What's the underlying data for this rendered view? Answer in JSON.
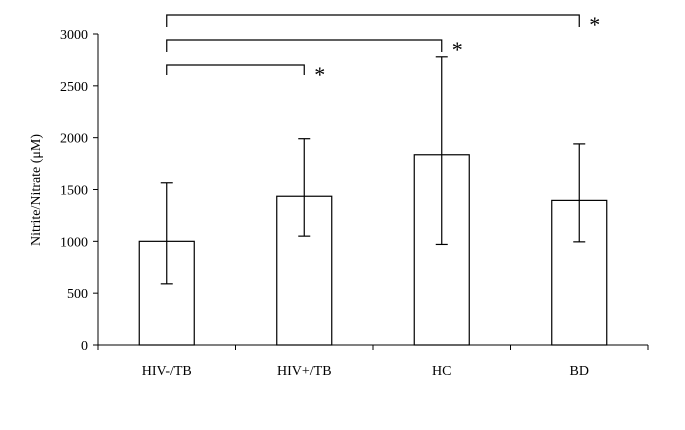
{
  "chart_data": {
    "type": "bar",
    "categories": [
      "HIV-/TB",
      "HIV+/TB",
      "HC",
      "BD"
    ],
    "values": [
      1000,
      1435,
      1835,
      1395
    ],
    "error_upper": [
      1565,
      1990,
      2780,
      1940
    ],
    "error_lower": [
      590,
      1050,
      970,
      995
    ],
    "ylabel": "Nitrite/Nitrate (μM)",
    "ylim": [
      0,
      3000
    ],
    "yticks": [
      0,
      500,
      1000,
      1500,
      2000,
      2500,
      3000
    ],
    "grid": false,
    "bar_fill": "#ffffff",
    "bar_stroke": "#000000",
    "significance": [
      {
        "from": "HIV-/TB",
        "to": "HIV+/TB",
        "label": "*"
      },
      {
        "from": "HIV-/TB",
        "to": "HC",
        "label": "*"
      },
      {
        "from": "HIV-/TB",
        "to": "BD",
        "label": "*"
      }
    ]
  }
}
